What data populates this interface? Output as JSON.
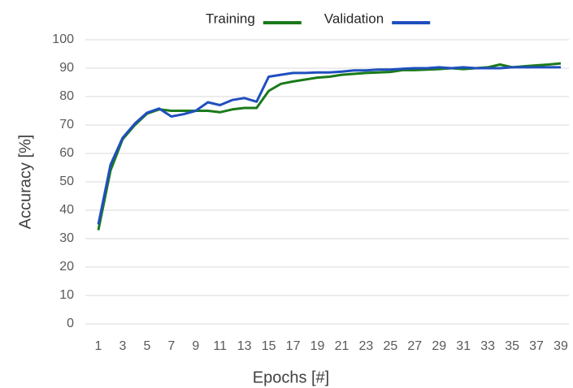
{
  "chart_data": {
    "type": "line",
    "x_label": "Epochs [#]",
    "y_label": "Accuracy [%]",
    "categories": [
      1,
      null,
      3,
      null,
      5,
      null,
      7,
      null,
      9,
      null,
      11,
      null,
      13,
      null,
      15,
      null,
      17,
      null,
      19,
      null,
      21,
      null,
      23,
      null,
      25,
      null,
      27,
      null,
      29,
      null,
      31,
      null,
      33,
      null,
      35,
      null,
      37,
      null,
      39
    ],
    "series": [
      {
        "name": "Training",
        "color": "#1a7a1a",
        "values": [
          33,
          54,
          65,
          70,
          74,
          75.5,
          75,
          75,
          75,
          75,
          74.5,
          75.5,
          76,
          76,
          82,
          84.5,
          85.3,
          86,
          86.7,
          87,
          87.7,
          88,
          88.3,
          88.5,
          88.7,
          89.3,
          89.3,
          89.5,
          89.7,
          90,
          89.7,
          90,
          90.3,
          91.3,
          90.3,
          90.7,
          91,
          91.3,
          91.7
        ]
      },
      {
        "name": "Validation",
        "color": "#1f4fbf",
        "values": [
          35,
          56,
          65.5,
          70.5,
          74.3,
          75.8,
          73,
          73.8,
          75,
          78,
          77,
          78.8,
          79.5,
          78.2,
          87,
          87.7,
          88.3,
          88.3,
          88.5,
          88.5,
          88.8,
          89.2,
          89.2,
          89.5,
          89.5,
          89.8,
          90,
          90,
          90.3,
          90,
          90.3,
          90,
          90,
          90,
          90.3,
          90.3,
          90.3,
          90.3,
          90.3
        ]
      }
    ],
    "ylim": [
      0,
      100
    ],
    "yticks": [
      0,
      10,
      20,
      30,
      40,
      50,
      60,
      70,
      80,
      90,
      100
    ],
    "grid": true,
    "legend": "top"
  }
}
